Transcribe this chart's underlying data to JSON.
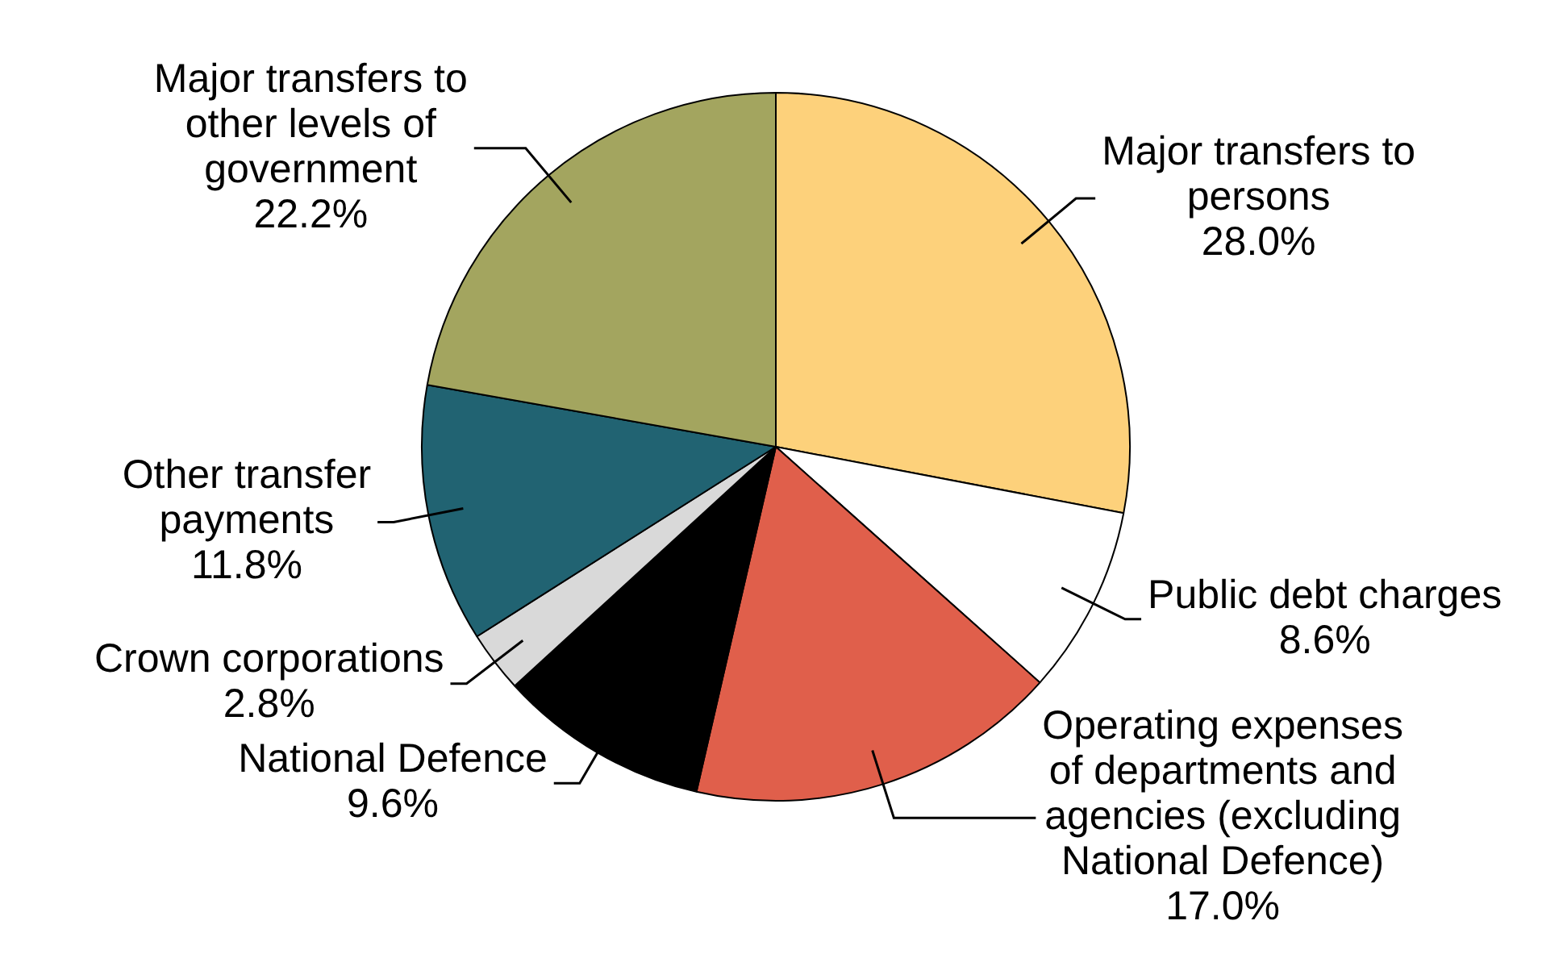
{
  "chart_data": {
    "type": "pie",
    "categories": [
      "Major transfers to persons",
      "Public debt charges",
      "Operating expenses of departments and agencies (excluding National Defence)",
      "National Defence",
      "Crown corporations",
      "Other transfer payments",
      "Major transfers to other levels of government"
    ],
    "values": [
      28.0,
      8.6,
      17.0,
      9.6,
      2.8,
      11.8,
      22.2
    ],
    "value_labels": [
      "28.0%",
      "8.6%",
      "17.0%",
      "9.6%",
      "2.8%",
      "11.8%",
      "22.2%"
    ],
    "colors": [
      "#fdd17b",
      "#ffffff",
      "#e05f4b",
      "#000000",
      "#d9d9d9",
      "#216372",
      "#a3a55f"
    ],
    "legend": false
  }
}
